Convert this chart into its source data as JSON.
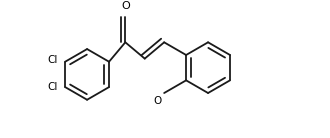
{
  "bg_color": "#ffffff",
  "bond_color": "#1a1a1a",
  "bond_lw": 1.3,
  "text_color": "#000000",
  "font_size": 7.5,
  "fig_width": 3.3,
  "fig_height": 1.38,
  "dpi": 100,
  "cl1_label": "Cl",
  "cl2_label": "Cl",
  "o_carbonyl_label": "O",
  "o_methoxy_label": "O"
}
